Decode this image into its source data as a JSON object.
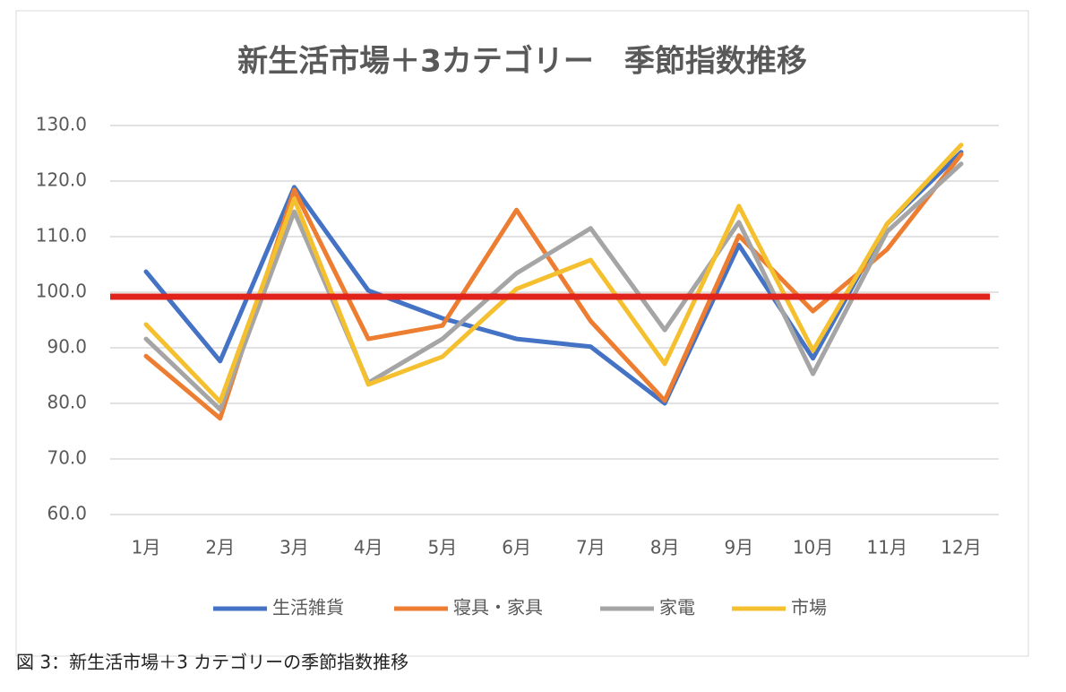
{
  "chart_data": {
    "type": "line",
    "title": "新生活市場＋3カテゴリー　季節指数推移",
    "caption": "図 3：新生活市場＋3 カテゴリーの季節指数推移",
    "categories": [
      "1月",
      "2月",
      "3月",
      "4月",
      "5月",
      "6月",
      "7月",
      "8月",
      "9月",
      "10月",
      "11月",
      "12月"
    ],
    "series": [
      {
        "name": "生活雑貨",
        "color": "#4472c4",
        "values": [
          103.7,
          87.6,
          118.9,
          100.3,
          95.3,
          91.6,
          90.2,
          80.0,
          108.5,
          88.1,
          112.3,
          125.2
        ]
      },
      {
        "name": "寝具・家具",
        "color": "#ed7d31",
        "values": [
          88.5,
          77.3,
          118.4,
          91.6,
          94.0,
          114.8,
          94.8,
          80.5,
          110.2,
          96.6,
          107.7,
          124.8
        ]
      },
      {
        "name": "家電",
        "color": "#a5a5a5",
        "values": [
          91.6,
          78.9,
          114.5,
          83.7,
          91.6,
          103.4,
          111.5,
          93.2,
          112.6,
          85.3,
          110.9,
          123.1
        ]
      },
      {
        "name": "市場",
        "color": "#f5c02f",
        "values": [
          94.2,
          80.3,
          116.8,
          83.4,
          88.4,
          100.6,
          105.8,
          87.1,
          115.5,
          89.5,
          112.3,
          126.5
        ]
      }
    ],
    "hline": {
      "value": 99.2,
      "color": "#e0241b"
    },
    "ylim": [
      60,
      130
    ],
    "yticks": [
      {
        "value": 60,
        "label": "60.0"
      },
      {
        "value": 70,
        "label": "70.0"
      },
      {
        "value": 80,
        "label": "80.0"
      },
      {
        "value": 90,
        "label": "90.0"
      },
      {
        "value": 100,
        "label": "100.0"
      },
      {
        "value": 110,
        "label": "110.0"
      },
      {
        "value": 120,
        "label": "120.0"
      },
      {
        "value": 130,
        "label": "130.0"
      }
    ],
    "grid": true,
    "legend": "bottom"
  }
}
